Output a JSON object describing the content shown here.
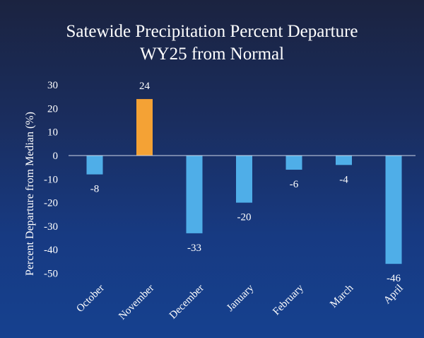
{
  "chart_data": {
    "type": "bar",
    "title_line1": "Satewide Precipitation Percent Departure",
    "title_line2": "WY25 from Normal",
    "xlabel": "",
    "ylabel": "Percent Departure from Median (%)",
    "ylim": [
      -50,
      30
    ],
    "yticks": [
      30,
      20,
      10,
      0,
      -10,
      -20,
      -30,
      -40,
      -50
    ],
    "categories": [
      "October",
      "November",
      "December",
      "January",
      "February",
      "March",
      "April"
    ],
    "values": [
      -8,
      24,
      -33,
      -20,
      -6,
      -4,
      -46
    ],
    "data_labels": [
      "-8",
      "24",
      "-33",
      "-20",
      "-6",
      "-4",
      "-46"
    ],
    "colors": {
      "negative": "#4faee8",
      "positive": "#f4a235",
      "axis": "#cfd8e8"
    }
  }
}
